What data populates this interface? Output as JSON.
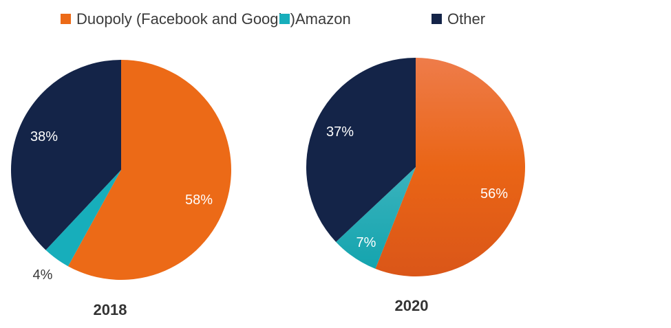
{
  "chart_data": [
    {
      "type": "pie",
      "title": "2018",
      "categories": [
        "Duopoly (Facebook and Google)",
        "Amazon",
        "Other"
      ],
      "values": [
        58,
        4,
        38
      ],
      "labels": [
        "58%",
        "4%",
        "38%"
      ]
    },
    {
      "type": "pie",
      "title": "2020",
      "categories": [
        "Duopoly (Facebook and Google)",
        "Amazon",
        "Other"
      ],
      "values": [
        56,
        7,
        37
      ],
      "labels": [
        "56%",
        "7%",
        "37%"
      ]
    }
  ],
  "legend": {
    "placement": "top",
    "items": [
      {
        "label": "Duopoly (Facebook and Google)",
        "color": "#ec6a17"
      },
      {
        "label": "Amazon",
        "color": "#17aebb"
      },
      {
        "label": "Other",
        "color": "#142448"
      }
    ]
  }
}
